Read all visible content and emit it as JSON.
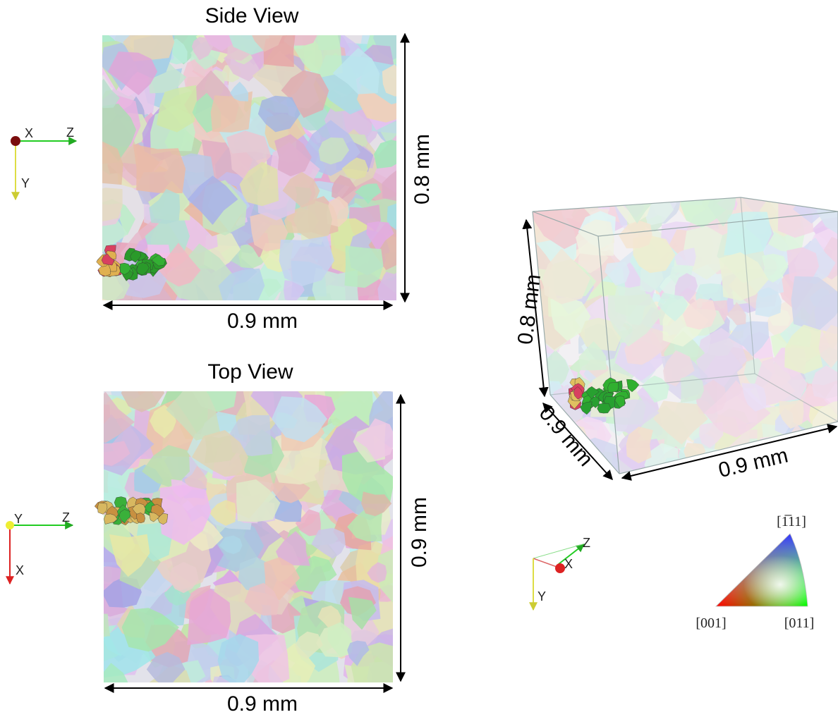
{
  "side_view": {
    "title": "Side View",
    "width_label": "0.9 mm",
    "height_label": "0.8 mm",
    "axes": {
      "x": "X",
      "y": "Y",
      "z": "Z"
    }
  },
  "top_view": {
    "title": "Top View",
    "width_label": "0.9 mm",
    "height_label": "0.9 mm",
    "axes": {
      "x": "X",
      "y": "Y",
      "z": "Z"
    }
  },
  "iso_view": {
    "height_label": "0.8 mm",
    "depth_label": "0.9 mm",
    "width_label": "0.9 mm",
    "axes": {
      "x": "X",
      "y": "Y",
      "z": "Z"
    }
  },
  "ipf_legend": {
    "top": "[1̅11]",
    "left": "[001]",
    "right": "[011]"
  }
}
